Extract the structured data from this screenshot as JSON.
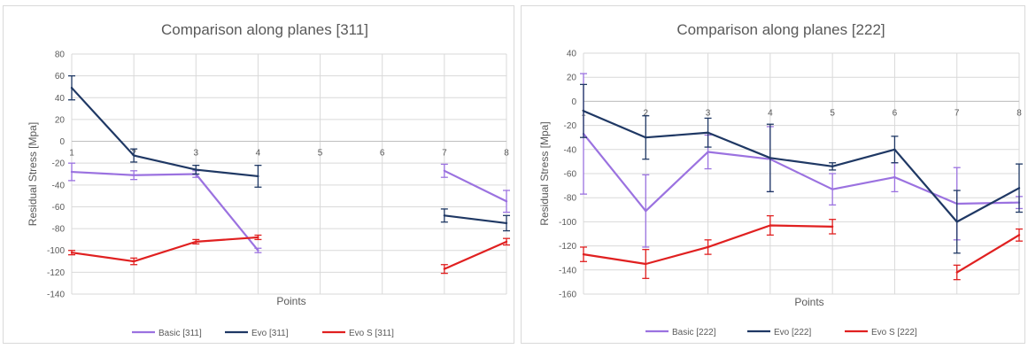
{
  "charts": [
    {
      "title": "Comparison along planes [311]",
      "xlabel": "Points",
      "ylabel": "Residual Stress [Mpa]",
      "x_ticks": [
        "1",
        "2",
        "3",
        "4",
        "5",
        "6",
        "7",
        "8"
      ],
      "y_ticks": [
        "80",
        "60",
        "40",
        "20",
        "0",
        "-20",
        "-40",
        "-60",
        "-80",
        "-100",
        "-120",
        "-140"
      ],
      "legend": [
        "Basic [311]",
        "Evo [311]",
        "Evo S [311]"
      ]
    },
    {
      "title": "Comparison along planes [222]",
      "xlabel": "Points",
      "ylabel": "Residual Stress [Mpa]",
      "x_ticks": [
        "1",
        "2",
        "3",
        "4",
        "5",
        "6",
        "7",
        "8"
      ],
      "y_ticks": [
        "40",
        "20",
        "0",
        "-20",
        "-40",
        "-60",
        "-80",
        "-100",
        "-120",
        "-140",
        "-160"
      ],
      "legend": [
        "Basic [222]",
        "Evo [222]",
        "Evo S [222]"
      ]
    }
  ],
  "chart_data": [
    {
      "type": "line",
      "title": "Comparison along planes [311]",
      "xlabel": "Points",
      "ylabel": "Residual Stress [Mpa]",
      "x": [
        1,
        2,
        3,
        4,
        5,
        6,
        7,
        8
      ],
      "ylim": [
        -140,
        80
      ],
      "grid": true,
      "legend_position": "bottom",
      "series": [
        {
          "name": "Basic [311]",
          "color": "#9b72e0",
          "values": [
            -28,
            -31,
            -30,
            -100,
            null,
            null,
            -27,
            -55
          ],
          "errors": [
            8,
            4,
            3,
            2,
            null,
            null,
            6,
            10
          ]
        },
        {
          "name": "Evo [311]",
          "color": "#1f3864",
          "values": [
            49,
            -13,
            -26,
            -32,
            null,
            null,
            -68,
            -75
          ],
          "errors": [
            11,
            6,
            4,
            10,
            null,
            null,
            6,
            7
          ]
        },
        {
          "name": "Evo S [311]",
          "color": "#e02020",
          "values": [
            -102,
            -110,
            -92,
            -88,
            null,
            null,
            -117,
            -92
          ],
          "errors": [
            2,
            3,
            2,
            2,
            null,
            null,
            4,
            3
          ]
        }
      ]
    },
    {
      "type": "line",
      "title": "Comparison along planes [222]",
      "xlabel": "Points",
      "ylabel": "Residual Stress [Mpa]",
      "x": [
        1,
        2,
        3,
        4,
        5,
        6,
        7,
        8
      ],
      "ylim": [
        -160,
        40
      ],
      "grid": true,
      "legend_position": "bottom",
      "series": [
        {
          "name": "Basic [222]",
          "color": "#9b72e0",
          "values": [
            -27,
            -91,
            -42,
            -48,
            -73,
            -63,
            -85,
            -84
          ],
          "errors": [
            50,
            30,
            14,
            27,
            13,
            12,
            30,
            5
          ]
        },
        {
          "name": "Evo [222]",
          "color": "#1f3864",
          "values": [
            -8,
            -30,
            -26,
            -47,
            -54,
            -40,
            -100,
            -72
          ],
          "errors": [
            22,
            18,
            12,
            28,
            3,
            11,
            26,
            20
          ]
        },
        {
          "name": "Evo S [222]",
          "color": "#e02020",
          "values": [
            -127,
            -135,
            -121,
            -103,
            -104,
            null,
            -142,
            -111
          ],
          "errors": [
            6,
            12,
            6,
            8,
            6,
            null,
            6,
            5
          ]
        }
      ]
    }
  ]
}
